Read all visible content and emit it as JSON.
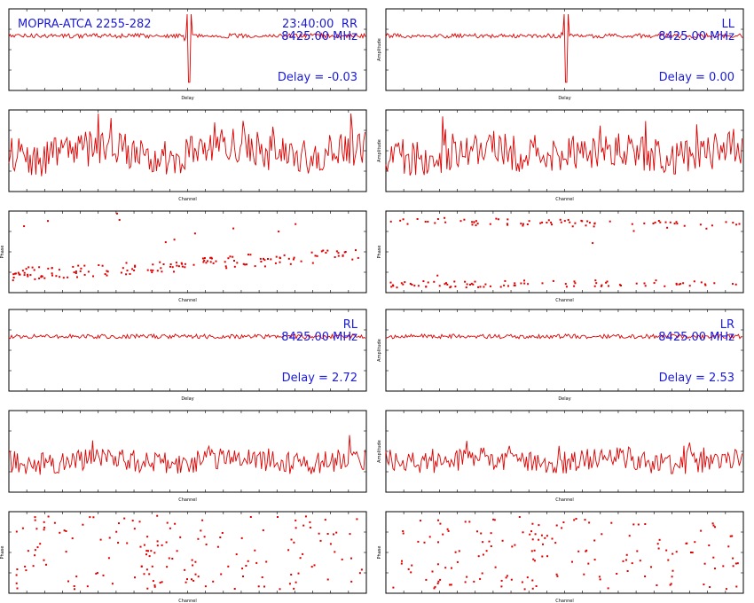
{
  "header": {
    "source_label": "MOPRA-ATCA 2255-282",
    "time": "23:40:00"
  },
  "colors": {
    "trace": "#dd0000",
    "annotation": "#1a1adc",
    "frame": "#000000"
  },
  "chart_data": [
    {
      "type": "line",
      "panel": "delay",
      "pol": "RR",
      "freq": "8425.00 MHz",
      "delay_label": "Delay = -0.03",
      "xlabel": "Delay",
      "ylabel": "",
      "peak": 1,
      "peak_dir": -1
    },
    {
      "type": "line",
      "panel": "delay",
      "pol": "LL",
      "freq": "8425.00 MHz",
      "delay_label": "Delay = 0.00",
      "xlabel": "Delay",
      "ylabel": "Amplitude",
      "peak": 1,
      "peak_dir": -1
    },
    {
      "type": "line",
      "panel": "amplitude",
      "pol": "RR",
      "xlabel": "Channel",
      "ylabel": "",
      "noise": "high"
    },
    {
      "type": "line",
      "panel": "amplitude",
      "pol": "LL",
      "xlabel": "Channel",
      "ylabel": "Amplitude",
      "noise": "high"
    },
    {
      "type": "scatter",
      "panel": "phase",
      "pol": "RR",
      "xlabel": "Channel",
      "ylabel": "Phase",
      "pattern": "ramp"
    },
    {
      "type": "scatter",
      "panel": "phase",
      "pol": "LL",
      "xlabel": "Channel",
      "ylabel": "Phase",
      "pattern": "wrap"
    },
    {
      "type": "line",
      "panel": "delay",
      "pol": "RL",
      "freq": "8425.00 MHz",
      "delay_label": "Delay = 2.72",
      "xlabel": "Delay",
      "ylabel": "",
      "peak": 0
    },
    {
      "type": "line",
      "panel": "delay",
      "pol": "LR",
      "freq": "8425.00 MHz",
      "delay_label": "Delay = 2.53",
      "xlabel": "Delay",
      "ylabel": "Amplitude",
      "peak": 0
    },
    {
      "type": "line",
      "panel": "amplitude",
      "pol": "RL",
      "xlabel": "Channel",
      "ylabel": "",
      "noise": "low"
    },
    {
      "type": "line",
      "panel": "amplitude",
      "pol": "LR",
      "xlabel": "Channel",
      "ylabel": "Amplitude",
      "noise": "low"
    },
    {
      "type": "scatter",
      "panel": "phase",
      "pol": "RL",
      "xlabel": "Channel",
      "ylabel": "Phase",
      "pattern": "random"
    },
    {
      "type": "scatter",
      "panel": "phase",
      "pol": "LR",
      "xlabel": "Channel",
      "ylabel": "Phase",
      "pattern": "random"
    }
  ]
}
